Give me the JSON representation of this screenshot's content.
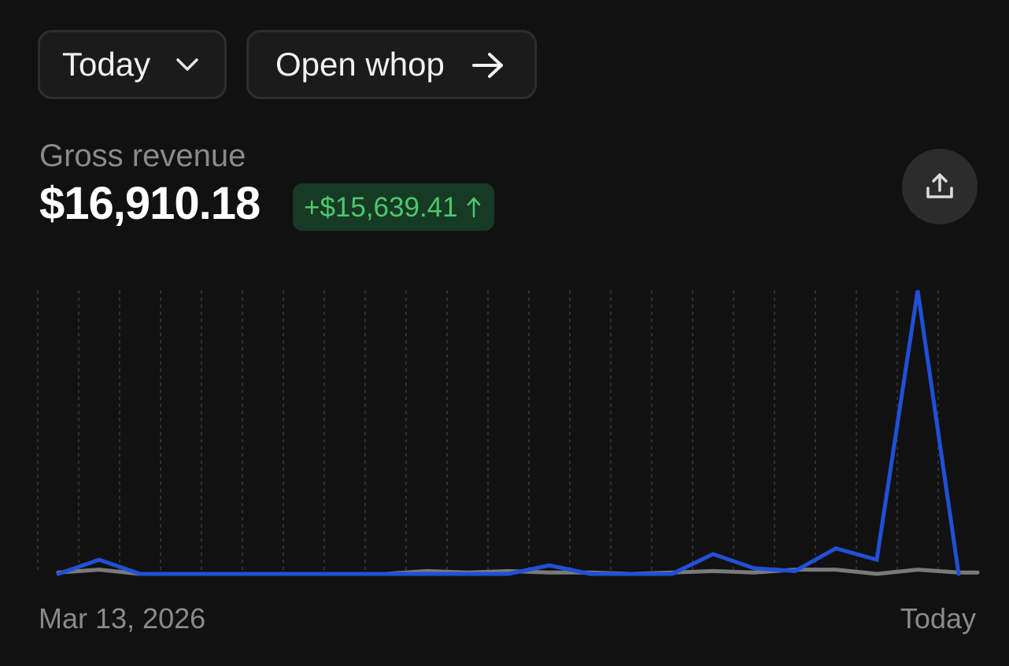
{
  "header": {
    "period_label": "Today",
    "open_label": "Open whop"
  },
  "metric": {
    "label": "Gross revenue",
    "value": "$16,910.18",
    "delta": "+$15,639.41",
    "delta_color": "#4cc76d",
    "delta_bg": "#173a24"
  },
  "icons": {
    "period_dropdown": "chevron-down-icon",
    "open_whop": "arrow-right-icon",
    "share": "share-upload-icon",
    "delta_direction": "arrow-up-icon"
  },
  "chart_data": {
    "type": "line",
    "x_start_label": "Mar 13, 2026",
    "x_end_label": "Today",
    "ylim": [
      0,
      100
    ],
    "grid": "vertical dashed",
    "series": [
      {
        "color": "#2050d8",
        "values": [
          0,
          5,
          0,
          0,
          0,
          0,
          0,
          0,
          0,
          0,
          0,
          0,
          3,
          0,
          0,
          0,
          7,
          2,
          1,
          9,
          5,
          100,
          0
        ]
      },
      {
        "color": "#7a7a7a",
        "values": [
          0.5,
          1.5,
          0,
          0,
          0,
          0,
          0,
          0,
          0,
          1,
          0.5,
          1,
          0.5,
          0.5,
          0,
          0.5,
          1,
          0.5,
          1.5,
          1.5,
          0,
          1.5,
          0.5
        ]
      }
    ]
  }
}
